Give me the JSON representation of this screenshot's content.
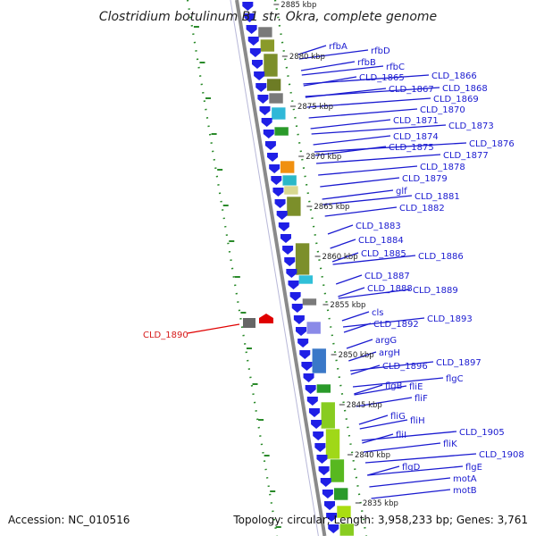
{
  "map": {
    "title": "Clostridium botulinum B1 str. Okra, complete genome",
    "accession": "Accession: NC_010516",
    "summary": "Topology: circular; Length: 3,958,233 bp; Genes: 3,761",
    "colors": {
      "backbone": "#8a8a8a",
      "cds": "#1f1fe6",
      "label": "#1a1ad0",
      "highlight": "#e00000",
      "dots": "#2a8a2a"
    },
    "kbp_markers": [
      "2885 kbp",
      "2880 kbp",
      "2875 kbp",
      "2870 kbp",
      "2865 kbp",
      "2860 kbp",
      "2855 kbp",
      "2850 kbp",
      "2845 kbp",
      "2840 kbp",
      "2835 kbp"
    ],
    "highlight_gene": "CLD_1890",
    "genes": [
      {
        "label": "rfbA"
      },
      {
        "label": "rfbD"
      },
      {
        "label": "rfbB"
      },
      {
        "label": "rfbC"
      },
      {
        "label": "CLD_1865"
      },
      {
        "label": "CLD_1866"
      },
      {
        "label": "CLD_1867"
      },
      {
        "label": "CLD_1868"
      },
      {
        "label": "CLD_1869"
      },
      {
        "label": "CLD_1870"
      },
      {
        "label": "CLD_1871"
      },
      {
        "label": "CLD_1873"
      },
      {
        "label": "CLD_1874"
      },
      {
        "label": "CLD_1876"
      },
      {
        "label": "CLD_1875"
      },
      {
        "label": "CLD_1877"
      },
      {
        "label": "CLD_1878"
      },
      {
        "label": "CLD_1879"
      },
      {
        "label": "glf"
      },
      {
        "label": "CLD_1881"
      },
      {
        "label": "CLD_1882"
      },
      {
        "label": "CLD_1883"
      },
      {
        "label": "CLD_1884"
      },
      {
        "label": "CLD_1885"
      },
      {
        "label": "CLD_1886"
      },
      {
        "label": "CLD_1887"
      },
      {
        "label": "CLD_1888"
      },
      {
        "label": "CLD_1889"
      },
      {
        "label": "cls"
      },
      {
        "label": "CLD_1892"
      },
      {
        "label": "CLD_1893"
      },
      {
        "label": "argG"
      },
      {
        "label": "argH"
      },
      {
        "label": "CLD_1896"
      },
      {
        "label": "CLD_1897"
      },
      {
        "label": "flgC"
      },
      {
        "label": "fliE"
      },
      {
        "label": "flgB"
      },
      {
        "label": "fliF"
      },
      {
        "label": "fliG"
      },
      {
        "label": "fliH"
      },
      {
        "label": "fliI"
      },
      {
        "label": "CLD_1905"
      },
      {
        "label": "fliK"
      },
      {
        "label": "CLD_1908"
      },
      {
        "label": "flgD"
      },
      {
        "label": "flgE"
      },
      {
        "label": "motA"
      },
      {
        "label": "motB"
      }
    ]
  }
}
